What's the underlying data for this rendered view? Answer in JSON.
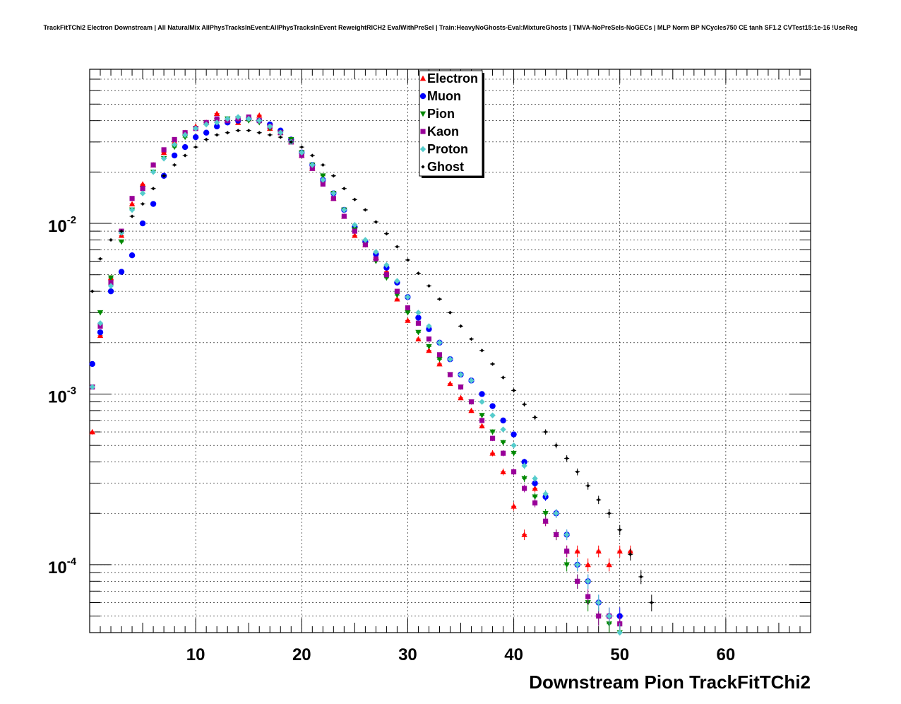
{
  "chart_data": {
    "type": "scatter",
    "title": "TrackFitTChi2 Electron Downstream | All NaturalMix AllPhysTracksInEvent:AllPhysTracksInEvent ReweightRICH2 EvalWithPreSel | Train:HeavyNoGhosts-Eval:MixtureGhosts | TMVA-NoPreSels-NoGECs | MLP Norm BP NCycles750 CE tanh SF1.2 CVTest15:1e-16 !UseReg",
    "xlabel": "Downstream Pion TrackFitTChi2",
    "ylabel": "",
    "xlim": [
      0,
      68
    ],
    "ylim": [
      4e-05,
      0.08
    ],
    "yscale": "log",
    "grid": true,
    "legend_position": "top-center",
    "x_ticks": [
      "10",
      "20",
      "30",
      "40",
      "50",
      "60"
    ],
    "y_ticks": [
      {
        "base": "10",
        "exp": "-2",
        "value": 0.01
      },
      {
        "base": "10",
        "exp": "-3",
        "value": 0.001
      },
      {
        "base": "10",
        "exp": "-4",
        "value": 0.0001
      }
    ],
    "series": [
      {
        "name": "Electron",
        "color": "#ff0000",
        "marker": "triangle-up",
        "x": [
          0.25,
          1,
          2,
          3,
          4,
          5,
          6,
          7,
          8,
          9,
          10,
          11,
          12,
          13,
          14,
          15,
          16,
          17,
          18,
          19,
          20,
          21,
          22,
          23,
          24,
          25,
          26,
          27,
          28,
          29,
          30,
          31,
          32,
          33,
          34,
          35,
          36,
          37,
          38,
          39,
          40,
          41,
          42,
          43,
          44,
          45,
          46,
          47,
          48,
          49,
          50,
          51
        ],
        "y": [
          0.0006,
          0.0022,
          0.0048,
          0.0085,
          0.013,
          0.017,
          0.022,
          0.026,
          0.03,
          0.034,
          0.037,
          0.039,
          0.044,
          0.041,
          0.039,
          0.041,
          0.043,
          0.036,
          0.034,
          0.03,
          0.025,
          0.021,
          0.018,
          0.014,
          0.011,
          0.0085,
          0.0075,
          0.0063,
          0.0052,
          0.0036,
          0.0027,
          0.0021,
          0.0018,
          0.0015,
          0.00115,
          0.00095,
          0.0008,
          0.00065,
          0.00045,
          0.00035,
          0.00022,
          0.00015,
          0.00028,
          0.00018,
          0.00015,
          0.00012,
          0.00012,
          0.0001,
          0.00012,
          0.0001,
          0.00012,
          0.00012
        ]
      },
      {
        "name": "Muon",
        "color": "#0000ff",
        "marker": "circle",
        "x": [
          0.25,
          1,
          2,
          3,
          4,
          5,
          6,
          7,
          8,
          9,
          10,
          11,
          12,
          13,
          14,
          15,
          16,
          17,
          18,
          19,
          20,
          21,
          22,
          23,
          24,
          25,
          26,
          27,
          28,
          29,
          30,
          31,
          32,
          33,
          34,
          35,
          36,
          37,
          38,
          39,
          40,
          41,
          42,
          43,
          44,
          45,
          46,
          47,
          48,
          49,
          50
        ],
        "y": [
          0.0015,
          0.0023,
          0.004,
          0.0052,
          0.0065,
          0.01,
          0.013,
          0.019,
          0.025,
          0.028,
          0.032,
          0.034,
          0.037,
          0.039,
          0.04,
          0.041,
          0.04,
          0.038,
          0.035,
          0.031,
          0.026,
          0.022,
          0.018,
          0.015,
          0.012,
          0.0095,
          0.0078,
          0.0066,
          0.0055,
          0.0045,
          0.0037,
          0.0028,
          0.0024,
          0.002,
          0.0016,
          0.0013,
          0.0012,
          0.001,
          0.00085,
          0.0007,
          0.00058,
          0.0004,
          0.0003,
          0.00025,
          0.0002,
          0.00015,
          0.0001,
          8e-05,
          6e-05,
          5e-05,
          5e-05
        ]
      },
      {
        "name": "Pion",
        "color": "#008800",
        "marker": "triangle-down",
        "x": [
          0.25,
          1,
          2,
          3,
          4,
          5,
          6,
          7,
          8,
          9,
          10,
          11,
          12,
          13,
          14,
          15,
          16,
          17,
          18,
          19,
          20,
          21,
          22,
          23,
          24,
          25,
          26,
          27,
          28,
          29,
          30,
          31,
          32,
          33,
          34,
          35,
          36,
          37,
          38,
          39,
          40,
          41,
          42,
          43,
          44,
          45,
          46,
          47,
          48,
          49,
          50
        ],
        "y": [
          0.0011,
          0.003,
          0.0048,
          0.0078,
          0.012,
          0.016,
          0.02,
          0.024,
          0.028,
          0.032,
          0.036,
          0.038,
          0.04,
          0.041,
          0.041,
          0.04,
          0.039,
          0.036,
          0.034,
          0.031,
          0.026,
          0.022,
          0.019,
          0.015,
          0.012,
          0.0092,
          0.0075,
          0.006,
          0.0048,
          0.0038,
          0.003,
          0.0023,
          0.0019,
          0.0016,
          0.0013,
          0.0011,
          0.0009,
          0.00075,
          0.0006,
          0.00052,
          0.00045,
          0.00032,
          0.00025,
          0.0002,
          0.00015,
          0.0001,
          8e-05,
          6e-05,
          5e-05,
          4.5e-05,
          4e-05
        ]
      },
      {
        "name": "Kaon",
        "color": "#990099",
        "marker": "square",
        "x": [
          0.25,
          1,
          2,
          3,
          4,
          5,
          6,
          7,
          8,
          9,
          10,
          11,
          12,
          13,
          14,
          15,
          16,
          17,
          18,
          19,
          20,
          21,
          22,
          23,
          24,
          25,
          26,
          27,
          28,
          29,
          30,
          31,
          32,
          33,
          34,
          35,
          36,
          37,
          38,
          39,
          40,
          41,
          42,
          43,
          44,
          45,
          46,
          47,
          48,
          49,
          50
        ],
        "y": [
          0.0011,
          0.0025,
          0.0045,
          0.009,
          0.014,
          0.016,
          0.022,
          0.027,
          0.031,
          0.034,
          0.036,
          0.039,
          0.041,
          0.04,
          0.041,
          0.042,
          0.04,
          0.037,
          0.034,
          0.03,
          0.025,
          0.021,
          0.017,
          0.014,
          0.011,
          0.009,
          0.0075,
          0.0062,
          0.005,
          0.004,
          0.0032,
          0.0026,
          0.0021,
          0.0017,
          0.0013,
          0.0011,
          0.0009,
          0.0007,
          0.00055,
          0.00045,
          0.00035,
          0.00028,
          0.00023,
          0.00018,
          0.00015,
          0.00012,
          8e-05,
          6.5e-05,
          5e-05,
          5e-05,
          4.5e-05
        ]
      },
      {
        "name": "Proton",
        "color": "#55cccc",
        "marker": "diamond",
        "x": [
          0.25,
          1,
          2,
          3,
          4,
          5,
          6,
          7,
          8,
          9,
          10,
          11,
          12,
          13,
          14,
          15,
          16,
          17,
          18,
          19,
          20,
          21,
          22,
          23,
          24,
          25,
          26,
          27,
          28,
          29,
          30,
          31,
          32,
          33,
          34,
          35,
          36,
          37,
          38,
          39,
          40,
          41,
          42,
          43,
          44,
          45,
          46,
          47,
          48,
          49,
          50
        ],
        "y": [
          0.0011,
          0.0026,
          0.0043,
          0.0088,
          0.012,
          0.015,
          0.02,
          0.024,
          0.029,
          0.033,
          0.036,
          0.038,
          0.039,
          0.041,
          0.042,
          0.041,
          0.04,
          0.037,
          0.034,
          0.03,
          0.026,
          0.022,
          0.018,
          0.015,
          0.012,
          0.0098,
          0.008,
          0.0068,
          0.0057,
          0.0046,
          0.0037,
          0.003,
          0.0025,
          0.002,
          0.0016,
          0.0013,
          0.0012,
          0.0009,
          0.00075,
          0.00062,
          0.0005,
          0.00038,
          0.00032,
          0.00026,
          0.0002,
          0.00015,
          0.0001,
          8e-05,
          6e-05,
          5e-05,
          4e-05
        ]
      },
      {
        "name": "Ghost",
        "color": "#000000",
        "marker": "small-diamond",
        "x": [
          0.25,
          1,
          2,
          3,
          4,
          5,
          6,
          7,
          8,
          9,
          10,
          11,
          12,
          13,
          14,
          15,
          16,
          17,
          18,
          19,
          20,
          21,
          22,
          23,
          24,
          25,
          26,
          27,
          28,
          29,
          30,
          31,
          32,
          33,
          34,
          35,
          36,
          37,
          38,
          39,
          40,
          41,
          42,
          43,
          44,
          45,
          46,
          47,
          48,
          49,
          50,
          51,
          52,
          53
        ],
        "y": [
          0.004,
          0.0062,
          0.008,
          0.009,
          0.011,
          0.013,
          0.016,
          0.019,
          0.022,
          0.025,
          0.028,
          0.031,
          0.033,
          0.034,
          0.035,
          0.035,
          0.034,
          0.033,
          0.032,
          0.03,
          0.028,
          0.025,
          0.022,
          0.019,
          0.016,
          0.0138,
          0.012,
          0.0102,
          0.0087,
          0.0073,
          0.0061,
          0.0051,
          0.0043,
          0.0036,
          0.003,
          0.0025,
          0.0021,
          0.0018,
          0.0015,
          0.00125,
          0.00105,
          0.00087,
          0.00073,
          0.0006,
          0.0005,
          0.00042,
          0.00035,
          0.00029,
          0.00024,
          0.0002,
          0.00016,
          0.000115,
          8.5e-05,
          6e-05
        ]
      }
    ]
  }
}
